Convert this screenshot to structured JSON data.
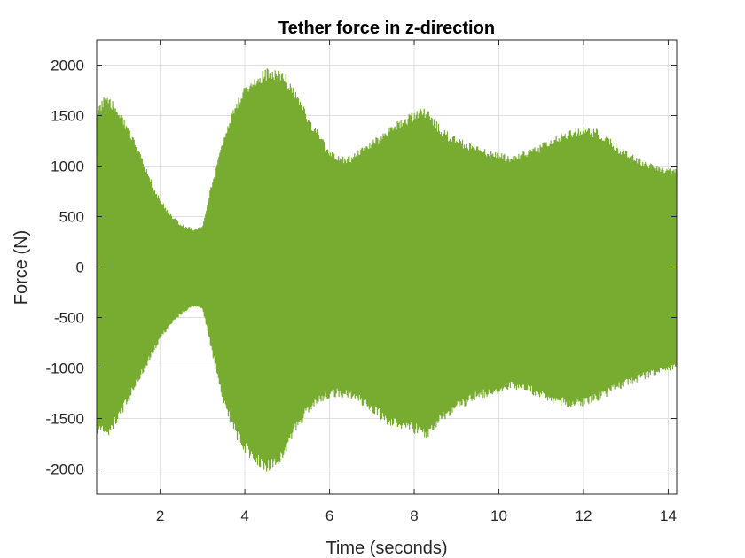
{
  "chart_data": {
    "type": "area",
    "title": "Tether force in z-direction",
    "xlabel": "Time (seconds)",
    "ylabel": "Force (N)",
    "xlim": [
      0.5,
      14.2
    ],
    "ylim": [
      -2250,
      2250
    ],
    "x_ticks": [
      2,
      4,
      6,
      8,
      10,
      12,
      14
    ],
    "x_tick_labels": [
      "2",
      "4",
      "6",
      "8",
      "10",
      "12",
      "14"
    ],
    "y_ticks": [
      -2000,
      -1500,
      -1000,
      -500,
      0,
      500,
      1000,
      1500,
      2000
    ],
    "y_tick_labels": [
      "-2000",
      "-1500",
      "-1000",
      "-500",
      "0",
      "500",
      "1000",
      "1500",
      "2000"
    ],
    "grid": true,
    "legend": "none",
    "series_color": "#77AC30",
    "series": [
      {
        "x": [
          0.5,
          0.7,
          1.0,
          1.3,
          1.6,
          1.9,
          2.2,
          2.5,
          2.8,
          3.0,
          3.2,
          3.4,
          3.6,
          3.8,
          4.0,
          4.2,
          4.5,
          4.8,
          5.0,
          5.2,
          5.5,
          5.8,
          6.0,
          6.2,
          6.5,
          6.8,
          7.0,
          7.3,
          7.6,
          8.0,
          8.3,
          8.6,
          8.9,
          9.2,
          9.5,
          9.8,
          10.0,
          10.3,
          10.6,
          10.9,
          11.2,
          11.5,
          11.8,
          12.0,
          12.3,
          12.6,
          12.9,
          13.2,
          13.5,
          13.8,
          14.2
        ],
        "upper": [
          1600,
          1700,
          1600,
          1350,
          1050,
          750,
          550,
          420,
          380,
          400,
          800,
          1150,
          1450,
          1650,
          1800,
          1900,
          1970,
          1960,
          1900,
          1750,
          1500,
          1300,
          1150,
          1100,
          1100,
          1200,
          1250,
          1350,
          1450,
          1550,
          1580,
          1400,
          1300,
          1250,
          1200,
          1150,
          1130,
          1100,
          1150,
          1200,
          1270,
          1330,
          1380,
          1400,
          1370,
          1280,
          1180,
          1100,
          1050,
          1000,
          980
        ],
        "lower": [
          -1650,
          -1700,
          -1550,
          -1300,
          -1050,
          -800,
          -600,
          -470,
          -390,
          -420,
          -800,
          -1200,
          -1500,
          -1700,
          -1850,
          -1950,
          -2030,
          -1980,
          -1850,
          -1650,
          -1450,
          -1350,
          -1300,
          -1280,
          -1300,
          -1380,
          -1430,
          -1550,
          -1600,
          -1650,
          -1700,
          -1560,
          -1450,
          -1380,
          -1300,
          -1280,
          -1250,
          -1200,
          -1230,
          -1280,
          -1350,
          -1380,
          -1390,
          -1380,
          -1330,
          -1270,
          -1200,
          -1150,
          -1100,
          -1050,
          -1000
        ]
      }
    ]
  }
}
